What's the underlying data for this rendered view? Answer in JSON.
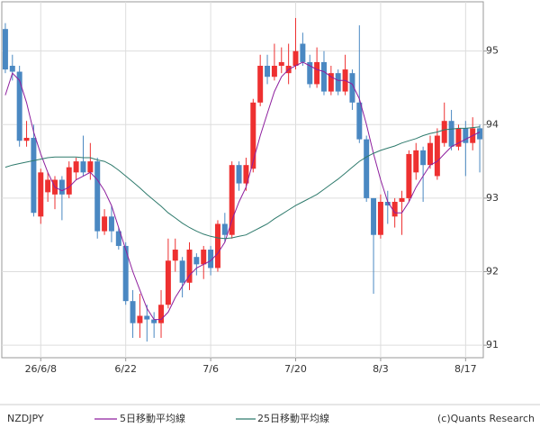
{
  "chart_data": {
    "type": "candlestick",
    "symbol": "NZDJPY",
    "source": "(c)Quants Research",
    "categories": [
      null,
      null,
      null,
      null,
      null,
      "26/6/8",
      null,
      null,
      null,
      null,
      null,
      null,
      null,
      null,
      null,
      null,
      null,
      "6/22",
      null,
      null,
      null,
      null,
      null,
      null,
      null,
      null,
      null,
      null,
      null,
      "7/6",
      null,
      null,
      null,
      null,
      null,
      null,
      null,
      null,
      null,
      null,
      null,
      "7/20",
      null,
      null,
      null,
      null,
      null,
      null,
      null,
      null,
      null,
      null,
      null,
      "8/3",
      null,
      null,
      null,
      null,
      null,
      null,
      null,
      null,
      null,
      null,
      null,
      "8/17",
      null,
      null
    ],
    "open": [
      95.3,
      94.8,
      94.72,
      93.78,
      93.82,
      92.75,
      93.08,
      93.05,
      93.25,
      93.05,
      93.35,
      93.5,
      93.35,
      93.5,
      92.55,
      92.75,
      92.55,
      92.35,
      91.6,
      91.3,
      91.4,
      91.35,
      91.3,
      91.55,
      92.15,
      92.15,
      91.85,
      92.2,
      92.1,
      92.3,
      92.05,
      92.65,
      92.5,
      93.45,
      93.2,
      93.4,
      94.3,
      94.8,
      94.65,
      94.8,
      94.7,
      94.8,
      95.1,
      94.85,
      94.55,
      94.85,
      94.45,
      94.7,
      94.45,
      94.7,
      94.3,
      93.8,
      93.0,
      92.5,
      92.95,
      92.75,
      92.95,
      93.0,
      93.35,
      93.65,
      93.45,
      93.3,
      93.75,
      94.05,
      93.7,
      93.95,
      93.75,
      93.95
    ],
    "high": [
      95.38,
      94.95,
      94.8,
      94.05,
      94.0,
      93.4,
      93.35,
      93.3,
      93.3,
      93.5,
      93.55,
      93.85,
      93.75,
      93.55,
      92.85,
      92.9,
      92.6,
      92.4,
      91.75,
      91.7,
      91.55,
      91.45,
      91.75,
      92.45,
      92.45,
      92.2,
      92.4,
      92.25,
      92.35,
      92.35,
      92.7,
      92.8,
      93.5,
      93.5,
      93.55,
      94.35,
      94.95,
      94.95,
      95.1,
      95.05,
      95.1,
      95.45,
      95.25,
      94.95,
      95.05,
      95.0,
      94.8,
      94.75,
      94.95,
      94.75,
      95.35,
      93.85,
      93.0,
      93.05,
      93.1,
      93.0,
      93.1,
      93.65,
      93.75,
      93.7,
      93.85,
      93.95,
      94.3,
      94.2,
      94.0,
      94.05,
      94.1,
      94.0
    ],
    "low": [
      94.7,
      94.6,
      93.7,
      93.7,
      92.75,
      92.65,
      92.95,
      92.85,
      92.7,
      93.0,
      93.25,
      93.3,
      93.25,
      92.45,
      92.5,
      92.4,
      92.3,
      91.55,
      91.1,
      91.1,
      91.05,
      91.1,
      91.1,
      91.5,
      92.0,
      91.65,
      91.75,
      91.95,
      91.9,
      91.95,
      92.0,
      92.4,
      92.45,
      93.1,
      93.1,
      93.35,
      94.25,
      94.55,
      94.6,
      94.7,
      94.55,
      94.75,
      94.8,
      94.5,
      94.5,
      94.4,
      94.4,
      94.4,
      94.4,
      94.2,
      93.75,
      92.95,
      91.7,
      92.45,
      92.65,
      92.6,
      92.5,
      92.95,
      93.25,
      92.95,
      93.4,
      93.25,
      93.7,
      93.65,
      93.65,
      93.3,
      93.65,
      93.35
    ],
    "close": [
      94.75,
      94.72,
      93.78,
      93.82,
      92.8,
      93.35,
      93.25,
      93.25,
      93.05,
      93.42,
      93.5,
      93.35,
      93.5,
      92.55,
      92.75,
      92.55,
      92.35,
      91.6,
      91.3,
      91.4,
      91.35,
      91.3,
      91.55,
      92.15,
      92.3,
      91.85,
      92.3,
      92.1,
      92.3,
      92.05,
      92.65,
      92.5,
      93.45,
      93.2,
      93.45,
      94.3,
      94.8,
      94.65,
      94.8,
      94.85,
      94.8,
      95.0,
      94.85,
      94.55,
      94.85,
      94.45,
      94.7,
      94.45,
      94.75,
      94.3,
      93.8,
      93.0,
      92.5,
      92.95,
      92.9,
      92.95,
      93.0,
      93.6,
      93.65,
      93.45,
      93.75,
      93.85,
      94.05,
      93.7,
      93.95,
      93.75,
      93.95,
      93.8
    ],
    "up_color": "#ee3030",
    "down_color": "#4a88c2",
    "lines": [
      {
        "name": "5日移動平均線",
        "color": "#8e1f9e",
        "values": [
          94.4,
          94.7,
          94.6,
          94.3,
          93.9,
          93.6,
          93.35,
          93.15,
          93.1,
          93.15,
          93.25,
          93.3,
          93.35,
          93.25,
          93.1,
          92.9,
          92.6,
          92.3,
          92.0,
          91.75,
          91.5,
          91.35,
          91.35,
          91.45,
          91.65,
          91.8,
          91.95,
          92.05,
          92.1,
          92.15,
          92.25,
          92.4,
          92.7,
          92.95,
          93.15,
          93.5,
          93.85,
          94.15,
          94.45,
          94.65,
          94.75,
          94.8,
          94.85,
          94.8,
          94.75,
          94.72,
          94.65,
          94.6,
          94.6,
          94.55,
          94.35,
          94.0,
          93.6,
          93.25,
          92.95,
          92.8,
          92.8,
          92.95,
          93.15,
          93.3,
          93.45,
          93.5,
          93.6,
          93.7,
          93.75,
          93.8,
          93.85,
          93.9
        ]
      },
      {
        "name": "25日移動平均線",
        "color": "#2e7a6c",
        "values": [
          93.42,
          93.45,
          93.47,
          93.49,
          93.51,
          93.53,
          93.55,
          93.56,
          93.56,
          93.56,
          93.56,
          93.55,
          93.55,
          93.52,
          93.5,
          93.45,
          93.38,
          93.3,
          93.22,
          93.14,
          93.05,
          92.97,
          92.89,
          92.8,
          92.73,
          92.66,
          92.6,
          92.55,
          92.51,
          92.48,
          92.46,
          92.45,
          92.46,
          92.48,
          92.5,
          92.55,
          92.6,
          92.65,
          92.72,
          92.78,
          92.84,
          92.9,
          92.95,
          93.0,
          93.05,
          93.12,
          93.19,
          93.26,
          93.34,
          93.42,
          93.5,
          93.56,
          93.61,
          93.65,
          93.68,
          93.71,
          93.75,
          93.78,
          93.81,
          93.85,
          93.88,
          93.9,
          93.93,
          93.94,
          93.95,
          93.95,
          93.96,
          93.97
        ]
      }
    ],
    "ylim": [
      90.83,
      95.67
    ],
    "yticks": [
      91,
      92,
      93,
      94,
      95
    ],
    "grid": true
  }
}
